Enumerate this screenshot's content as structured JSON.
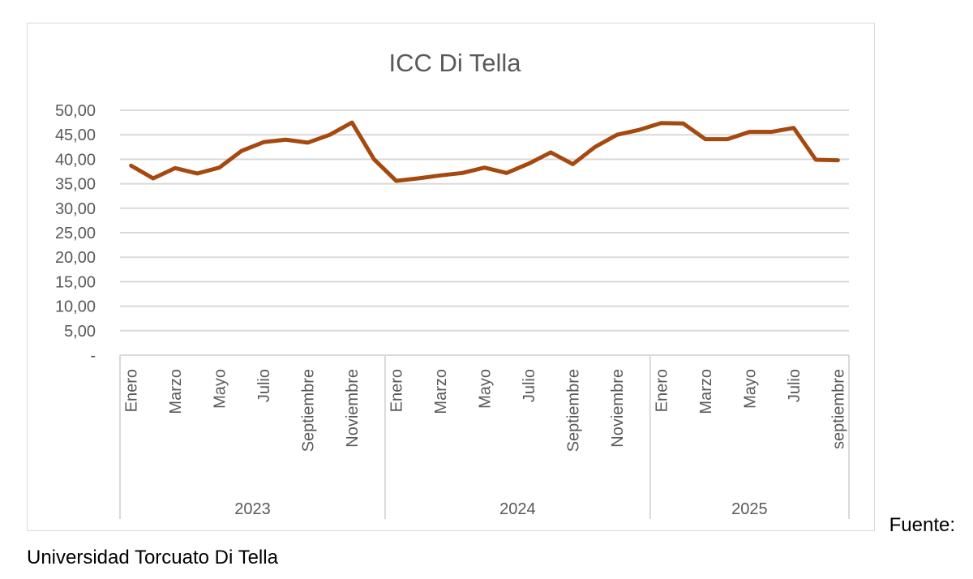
{
  "chart_data": {
    "type": "line",
    "title": "ICC Di Tella",
    "xlabel": "",
    "ylabel": "",
    "ylim": [
      0,
      50
    ],
    "y_ticks": [
      "-",
      "5,00",
      "10,00",
      "15,00",
      "20,00",
      "25,00",
      "30,00",
      "35,00",
      "40,00",
      "45,00",
      "50,00"
    ],
    "grid": true,
    "legend": "none",
    "groups": [
      {
        "year": "2023",
        "month_labels": [
          "Enero",
          "",
          "Marzo",
          "",
          "Mayo",
          "",
          "Julio",
          "",
          "Septiembre",
          "",
          "Noviembre",
          ""
        ]
      },
      {
        "year": "2024",
        "month_labels": [
          "Enero",
          "",
          "Marzo",
          "",
          "Mayo",
          "",
          "Julio",
          "",
          "Septiembre",
          "",
          "Noviembre",
          ""
        ]
      },
      {
        "year": "2025",
        "month_labels": [
          "Enero",
          "",
          "Marzo",
          "",
          "Mayo",
          "",
          "Julio",
          "",
          "septiembre"
        ]
      }
    ],
    "series": [
      {
        "name": "ICC Di Tella",
        "color": "#A5490F",
        "values": [
          38.7,
          36.1,
          38.2,
          37.1,
          38.3,
          41.7,
          43.5,
          44.0,
          43.4,
          45.0,
          47.5,
          40.0,
          35.6,
          36.1,
          36.7,
          37.2,
          38.3,
          37.2,
          39.1,
          41.4,
          39.0,
          42.5,
          45.0,
          46.0,
          47.4,
          47.3,
          44.1,
          44.1,
          45.6,
          45.6,
          46.4,
          39.9,
          39.8
        ]
      }
    ]
  },
  "source": {
    "prefix": "Fuente:",
    "name": "Universidad Torcuato Di Tella"
  }
}
